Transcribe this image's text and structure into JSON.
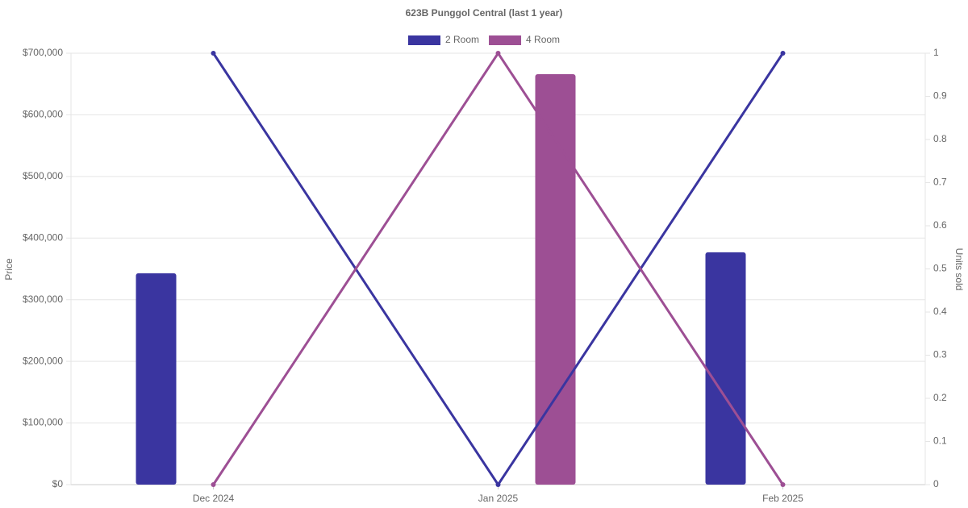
{
  "chart_data": {
    "type": "bar-line",
    "title": "623B Punggol Central (last 1 year)",
    "categories": [
      "Dec 2024",
      "Jan 2025",
      "Feb 2025"
    ],
    "series": [
      {
        "name": "2 Room",
        "color": "#3a35a0",
        "values": [
          343000,
          null,
          377000
        ],
        "units": [
          1,
          0,
          1
        ]
      },
      {
        "name": "4 Room",
        "color": "#9d4f94",
        "values": [
          null,
          666000,
          null
        ],
        "units": [
          0,
          1,
          0
        ]
      }
    ],
    "y_label": "Price",
    "y2_label": "Units sold",
    "ylim": [
      0,
      700000
    ],
    "yticks": [
      {
        "value": 0,
        "label": "$0"
      },
      {
        "value": 100000,
        "label": "$100,000"
      },
      {
        "value": 200000,
        "label": "$200,000"
      },
      {
        "value": 300000,
        "label": "$300,000"
      },
      {
        "value": 400000,
        "label": "$400,000"
      },
      {
        "value": 500000,
        "label": "$500,000"
      },
      {
        "value": 600000,
        "label": "$600,000"
      },
      {
        "value": 700000,
        "label": "$700,000"
      }
    ],
    "y2lim": [
      0,
      1
    ],
    "y2ticks": [
      0,
      0.1,
      0.2,
      0.3,
      0.4,
      0.5,
      0.6,
      0.7,
      0.8,
      0.9,
      1
    ],
    "grid": true,
    "legend": "top"
  }
}
